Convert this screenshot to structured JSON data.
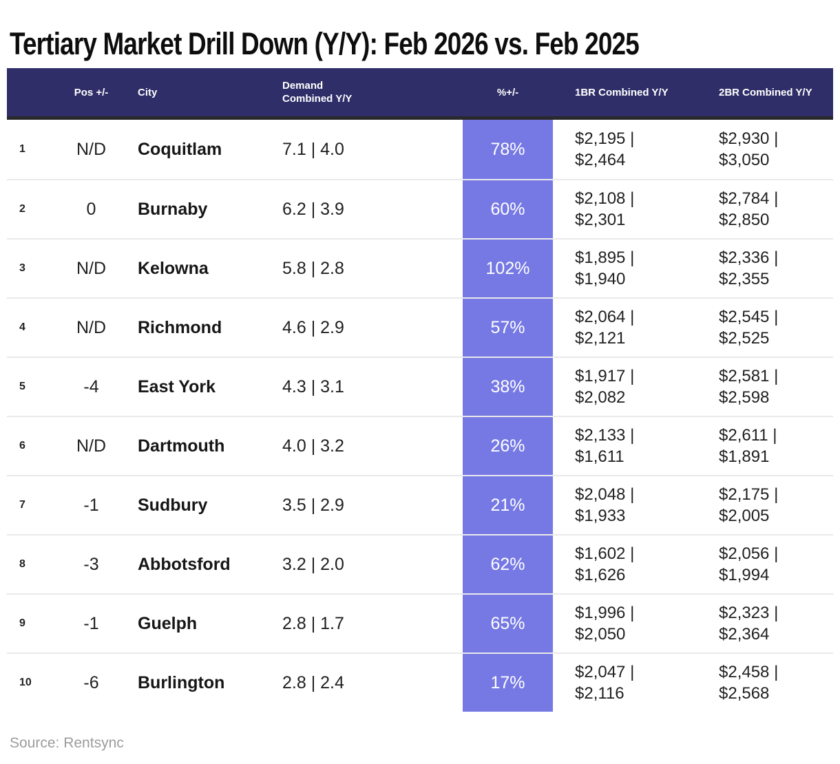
{
  "title": "Tertiary Market Drill Down (Y/Y): Feb 2026 vs. Feb 2025",
  "source": "Source: Rentsync",
  "colors": {
    "header_bg": "#2F2E69",
    "accent_highlight": "#7679E4",
    "header_divider": "#29292C",
    "row_line": "#E9E9E9"
  },
  "chart_data": {
    "type": "table",
    "title": "Tertiary Market Drill Down (Y/Y): Feb 2026 vs. Feb 2025",
    "highlighted_column": "%+/-",
    "columns": [
      "",
      "Pos +/-",
      "City",
      "Demand Combined Y/Y",
      "%+/-",
      "1BR Combined Y/Y",
      "2BR Combined Y/Y"
    ],
    "rows": [
      {
        "rank": "1",
        "pos": "N/D",
        "city": "Coquitlam",
        "demand": "7.1 | 4.0",
        "pct": "78%",
        "br1": "$2,195 | $2,464",
        "br2": "$2,930 | $3,050"
      },
      {
        "rank": "2",
        "pos": "0",
        "city": "Burnaby",
        "demand": "6.2 | 3.9",
        "pct": "60%",
        "br1": "$2,108 | $2,301",
        "br2": "$2,784 | $2,850"
      },
      {
        "rank": "3",
        "pos": "N/D",
        "city": "Kelowna",
        "demand": "5.8 | 2.8",
        "pct": "102%",
        "br1": "$1,895 | $1,940",
        "br2": "$2,336 | $2,355"
      },
      {
        "rank": "4",
        "pos": "N/D",
        "city": "Richmond",
        "demand": "4.6 | 2.9",
        "pct": "57%",
        "br1": "$2,064 | $2,121",
        "br2": "$2,545 | $2,525"
      },
      {
        "rank": "5",
        "pos": "-4",
        "city": "East York",
        "demand": "4.3 | 3.1",
        "pct": "38%",
        "br1": "$1,917 | $2,082",
        "br2": "$2,581 | $2,598"
      },
      {
        "rank": "6",
        "pos": "N/D",
        "city": "Dartmouth",
        "demand": "4.0 | 3.2",
        "pct": "26%",
        "br1": "$2,133 | $1,611",
        "br2": "$2,611 | $1,891"
      },
      {
        "rank": "7",
        "pos": "-1",
        "city": "Sudbury",
        "demand": "3.5 | 2.9",
        "pct": "21%",
        "br1": "$2,048 | $1,933",
        "br2": "$2,175 | $2,005"
      },
      {
        "rank": "8",
        "pos": "-3",
        "city": "Abbotsford",
        "demand": "3.2 | 2.0",
        "pct": "62%",
        "br1": "$1,602 | $1,626",
        "br2": "$2,056 | $1,994"
      },
      {
        "rank": "9",
        "pos": "-1",
        "city": "Guelph",
        "demand": "2.8 | 1.7",
        "pct": "65%",
        "br1": "$1,996 | $2,050",
        "br2": "$2,323 | $2,364"
      },
      {
        "rank": "10",
        "pos": "-6",
        "city": "Burlington",
        "demand": "2.8 | 2.4",
        "pct": "17%",
        "br1": "$2,047 | $2,116",
        "br2": "$2,458 | $2,568"
      }
    ]
  }
}
